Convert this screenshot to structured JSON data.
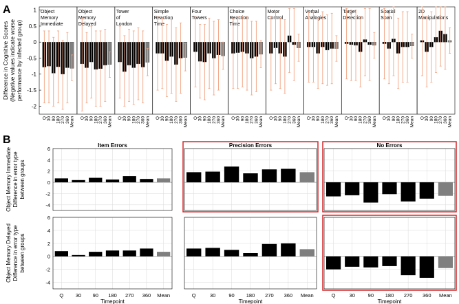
{
  "panel_a": {
    "label": "A",
    "ylabel_lines": [
      "Difference in Cognitive Scores",
      "(Negative values indicate worse",
      "performance by infected group)"
    ],
    "yticks": [
      "1",
      "0.5",
      "0",
      "-0.5",
      "-1",
      "-1.5",
      "-2"
    ],
    "xtick_labels": [
      "Q",
      "30",
      "90",
      "180",
      "270",
      "360",
      "Mean"
    ]
  },
  "panel_b": {
    "label": "B",
    "xlabel": "Timepoint",
    "xtick_labels": [
      "Q",
      "30",
      "90",
      "180",
      "270",
      "360",
      "Mean"
    ],
    "yticks": [
      "6",
      "4",
      "2",
      "0",
      "-2",
      "-4"
    ],
    "column_titles": [
      "Item Errors",
      "Precision Errors",
      "No Errors"
    ],
    "row_labels": [
      [
        "Object Memory Immediate",
        "Difference in error type",
        "between groups"
      ],
      [
        "Object Memory Delayed",
        "Difference in error type",
        "between groups"
      ]
    ]
  },
  "colors": {
    "bar": "#000000",
    "mean_bar": "#7f7f7f",
    "errorbar": "#f2a17f",
    "highlight_border": "#d62728",
    "grid": "#d9d9d9"
  },
  "chart_data": [
    {
      "type": "bar",
      "title": "",
      "ylim": [
        -2.25,
        1.1
      ],
      "categories": [
        "Q",
        "30",
        "90",
        "180",
        "270",
        "360",
        "Mean"
      ],
      "series": [
        {
          "name": "Object Memory Immediate",
          "values": [
            -0.78,
            -0.75,
            -0.97,
            -0.77,
            -1.0,
            -0.8,
            -0.82
          ],
          "err_low": [
            -1.9,
            -1.9,
            -2.0,
            -1.9,
            -2.1,
            -1.9,
            -1.2
          ],
          "err_high": [
            0.35,
            0.35,
            0.15,
            0.35,
            0.05,
            0.3,
            -0.4
          ]
        },
        {
          "name": "Object Memory Delayed",
          "values": [
            -0.68,
            -0.8,
            -0.62,
            -0.85,
            -0.83,
            -0.72,
            -0.7
          ],
          "err_low": [
            -2.15,
            -1.9,
            -1.75,
            -2.0,
            -2.0,
            -1.85,
            -1.1
          ],
          "err_high": [
            0.75,
            0.3,
            0.5,
            0.35,
            0.35,
            0.4,
            -0.3
          ]
        },
        {
          "name": "Tower of London",
          "values": [
            -0.62,
            -0.92,
            -0.72,
            -0.8,
            -0.68,
            -0.78,
            -0.63
          ],
          "err_low": [
            -1.75,
            -2.0,
            -1.85,
            -1.95,
            -1.8,
            -1.9,
            -1.05
          ],
          "err_high": [
            0.5,
            0.2,
            0.4,
            0.35,
            0.45,
            0.35,
            -0.2
          ]
        },
        {
          "name": "Simple Reaction Time",
          "values": [
            -0.35,
            -0.35,
            -0.58,
            -0.45,
            -0.7,
            -0.5,
            -0.48
          ],
          "err_low": [
            -1.5,
            -1.45,
            -1.7,
            -1.6,
            -1.85,
            -1.6,
            -0.9
          ],
          "err_high": [
            0.8,
            0.75,
            0.55,
            0.7,
            0.45,
            0.6,
            -0.05
          ]
        },
        {
          "name": "Four Towers",
          "values": [
            -0.3,
            -0.6,
            -0.62,
            -0.35,
            -0.5,
            -0.4,
            -0.43
          ],
          "err_low": [
            -1.4,
            -1.75,
            -1.8,
            -1.45,
            -1.65,
            -1.5,
            -0.85
          ],
          "err_high": [
            0.8,
            0.55,
            0.55,
            0.75,
            0.65,
            0.7,
            0.0
          ]
        },
        {
          "name": "Choice Reaction Time",
          "values": [
            -0.35,
            -0.33,
            -0.3,
            -0.35,
            -0.5,
            -0.45,
            -0.38
          ],
          "err_low": [
            -1.45,
            -1.45,
            -1.4,
            -1.5,
            -1.65,
            -1.55,
            -0.8
          ],
          "err_high": [
            0.75,
            0.8,
            0.8,
            0.8,
            0.65,
            0.65,
            0.05
          ]
        },
        {
          "name": "Motor Control",
          "values": [
            -0.35,
            -0.18,
            -0.35,
            -0.45,
            0.2,
            -0.08,
            -0.18
          ],
          "err_low": [
            -1.5,
            -1.3,
            -1.45,
            -1.6,
            -0.95,
            -1.2,
            -0.6
          ],
          "err_high": [
            0.8,
            0.95,
            0.75,
            0.7,
            1.05,
            1.05,
            0.25
          ]
        },
        {
          "name": "Verbal Analogies",
          "values": [
            -0.15,
            -0.15,
            -0.35,
            -0.15,
            -0.25,
            -0.2,
            -0.2
          ],
          "err_low": [
            -1.25,
            -1.25,
            -1.45,
            -1.3,
            -1.35,
            -1.3,
            -0.6
          ],
          "err_high": [
            0.95,
            0.95,
            0.75,
            0.95,
            0.85,
            0.9,
            0.2
          ]
        },
        {
          "name": "Target Detection",
          "values": [
            -0.05,
            -0.08,
            -0.1,
            -0.3,
            0.08,
            -0.08,
            -0.1
          ],
          "err_low": [
            -1.15,
            -1.2,
            -1.2,
            -1.4,
            -1.05,
            -1.2,
            -0.5
          ],
          "err_high": [
            1.05,
            1.0,
            1.0,
            0.8,
            1.05,
            1.05,
            0.3
          ]
        },
        {
          "name": "Spatial Span",
          "values": [
            -0.05,
            -0.2,
            0.1,
            -0.35,
            -0.15,
            -0.15,
            -0.12
          ],
          "err_low": [
            -1.15,
            -1.3,
            -1.05,
            -1.45,
            -1.25,
            -1.25,
            -0.5
          ],
          "err_high": [
            1.05,
            0.9,
            1.1,
            0.75,
            0.95,
            0.95,
            0.25
          ]
        },
        {
          "name": "2D Manipulations",
          "values": [
            0.05,
            -0.3,
            -0.15,
            0.15,
            0.35,
            0.25,
            0.05
          ],
          "err_low": [
            -1.05,
            -1.4,
            -1.25,
            -0.95,
            -0.75,
            -0.85,
            -0.35
          ],
          "err_high": [
            1.1,
            0.8,
            0.95,
            1.1,
            1.1,
            1.1,
            0.45
          ]
        }
      ]
    },
    {
      "type": "bar",
      "title": "Item Errors",
      "ylabel": "Object Memory Immediate Difference in error type between groups",
      "ylim": [
        -5,
        6
      ],
      "categories": [
        "Q",
        "30",
        "90",
        "180",
        "270",
        "360",
        "Mean"
      ],
      "values": [
        0.7,
        0.4,
        0.8,
        0.5,
        1.1,
        0.6,
        0.7
      ]
    },
    {
      "type": "bar",
      "title": "Precision Errors",
      "ylim": [
        -5,
        6
      ],
      "categories": [
        "Q",
        "30",
        "90",
        "180",
        "270",
        "360",
        "Mean"
      ],
      "values": [
        1.8,
        1.9,
        2.8,
        1.6,
        2.3,
        2.4,
        1.8
      ]
    },
    {
      "type": "bar",
      "title": "No Errors",
      "ylim": [
        -5,
        6
      ],
      "categories": [
        "Q",
        "30",
        "90",
        "180",
        "270",
        "360",
        "Mean"
      ],
      "values": [
        -2.5,
        -2.3,
        -3.6,
        -2.1,
        -3.4,
        -2.9,
        -2.4
      ]
    },
    {
      "type": "bar",
      "title": "",
      "ylabel": "Object Memory Delayed Difference in error type between groups",
      "xlabel": "Timepoint",
      "ylim": [
        -5,
        6
      ],
      "categories": [
        "Q",
        "30",
        "90",
        "180",
        "270",
        "360",
        "Mean"
      ],
      "values": [
        0.8,
        0.2,
        0.7,
        0.9,
        0.9,
        1.2,
        0.7
      ]
    },
    {
      "type": "bar",
      "title": "",
      "xlabel": "Timepoint",
      "ylim": [
        -5,
        6
      ],
      "categories": [
        "Q",
        "30",
        "90",
        "180",
        "270",
        "360",
        "Mean"
      ],
      "values": [
        1.2,
        1.3,
        1.0,
        0.5,
        1.9,
        2.0,
        1.1
      ]
    },
    {
      "type": "bar",
      "title": "",
      "xlabel": "Timepoint",
      "ylim": [
        -5,
        6
      ],
      "categories": [
        "Q",
        "30",
        "90",
        "180",
        "270",
        "360",
        "Mean"
      ],
      "values": [
        -2.0,
        -1.6,
        -1.7,
        -1.5,
        -2.9,
        -3.3,
        -1.8
      ]
    }
  ],
  "panel_a_titles": [
    [
      "Object",
      "Memory",
      "Immediate"
    ],
    [
      "Object",
      "Memory",
      "Delayed"
    ],
    [
      "Tower",
      "of",
      "London"
    ],
    [
      "Simple",
      "Reaction",
      "Time"
    ],
    [
      "Four",
      "Towers"
    ],
    [
      "Choice",
      "Reaction",
      "Time"
    ],
    [
      "Motor",
      "Control"
    ],
    [
      "Verbal",
      "Analogies"
    ],
    [
      "Target",
      "Detection"
    ],
    [
      "Spatial",
      "Span"
    ],
    [
      "2D",
      "Manipulations"
    ]
  ]
}
